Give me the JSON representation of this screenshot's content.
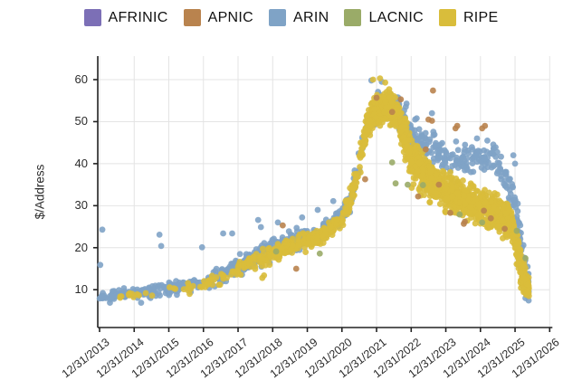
{
  "legend": {
    "items": [
      {
        "label": "AFRINIC",
        "color": "#7c6fb6"
      },
      {
        "label": "APNIC",
        "color": "#b9834e"
      },
      {
        "label": "ARIN",
        "color": "#7fa3c6"
      },
      {
        "label": "LACNIC",
        "color": "#9aab68"
      },
      {
        "label": "RIPE",
        "color": "#d9bd3b"
      }
    ]
  },
  "chart_data": {
    "type": "scatter",
    "title": "",
    "ylabel": "$/Address",
    "x_encoding": "t = years after 12/31/2013",
    "grid": true,
    "legend_position": "top-center",
    "x_axis": {
      "domain": [
        0,
        13
      ],
      "tick_labels": [
        "12/31/2013",
        "12/31/2014",
        "12/31/2015",
        "12/31/2016",
        "12/31/2017",
        "12/31/2018",
        "12/31/2019",
        "12/31/2020",
        "12/31/2021",
        "12/31/2022",
        "12/31/2023",
        "12/31/2024",
        "12/31/2025",
        "12/31/2026"
      ]
    },
    "y_axis": {
      "domain": [
        1,
        65.6
      ],
      "ticks": [
        10,
        20,
        30,
        40,
        50,
        60
      ]
    },
    "point_radius": 3.4,
    "series": [
      {
        "name": "AFRINIC",
        "color": "#7c6fb6",
        "points": []
      },
      {
        "name": "APNIC",
        "color": "#b9834e",
        "points": [
          [
            5.29,
            25.3
          ],
          [
            5.68,
            15.0
          ],
          [
            7.67,
            36.3
          ],
          [
            8.0,
            55.7
          ],
          [
            8.45,
            52.3
          ],
          [
            8.7,
            55.3
          ],
          [
            9.2,
            32.2
          ],
          [
            9.42,
            43.4
          ],
          [
            9.5,
            50.5
          ],
          [
            9.6,
            50.2
          ],
          [
            9.63,
            57.4
          ],
          [
            9.8,
            35.0
          ],
          [
            10.13,
            28.3
          ],
          [
            10.28,
            48.4
          ],
          [
            10.33,
            49.0
          ],
          [
            10.52,
            25.7
          ],
          [
            10.55,
            26.2
          ],
          [
            11.05,
            48.4
          ],
          [
            11.13,
            49.0
          ],
          [
            11.1,
            28.8
          ],
          [
            11.3,
            27.0
          ],
          [
            11.7,
            24.5
          ]
        ]
      },
      {
        "name": "ARIN",
        "color": "#7fa3c6",
        "trend": [
          [
            0,
            8.3
          ],
          [
            1,
            9.3
          ],
          [
            2,
            10.3
          ],
          [
            3,
            11.8
          ],
          [
            3.5,
            13.2
          ],
          [
            4,
            15.5
          ],
          [
            4.5,
            17.5
          ],
          [
            5,
            20.0
          ],
          [
            5.5,
            21.3
          ],
          [
            6,
            22.5
          ],
          [
            6.5,
            24.0
          ],
          [
            7,
            28.0
          ],
          [
            7.2,
            30.5
          ],
          [
            7.5,
            40
          ],
          [
            7.7,
            48
          ],
          [
            7.9,
            52
          ],
          [
            8.2,
            54
          ],
          [
            8.6,
            53
          ],
          [
            9,
            47
          ],
          [
            9.5,
            44
          ],
          [
            10,
            42
          ],
          [
            10.5,
            41
          ],
          [
            11,
            41
          ],
          [
            11.4,
            41.5
          ],
          [
            11.7,
            37
          ],
          [
            12,
            31
          ],
          [
            12.15,
            22
          ],
          [
            12.3,
            13
          ],
          [
            12.4,
            11
          ]
        ],
        "spread": [
          [
            0,
            1.3
          ],
          [
            1,
            1.5
          ],
          [
            2,
            1.7
          ],
          [
            3,
            2.2
          ],
          [
            4,
            2.8
          ],
          [
            5,
            3.2
          ],
          [
            6,
            2.8
          ],
          [
            7,
            3.0
          ],
          [
            7.5,
            4
          ],
          [
            8,
            4.5
          ],
          [
            8.6,
            5
          ],
          [
            9,
            5.5
          ],
          [
            10,
            4.5
          ],
          [
            11,
            4.5
          ],
          [
            11.7,
            4.5
          ],
          [
            12,
            5
          ],
          [
            12.2,
            6
          ],
          [
            12.4,
            4
          ]
        ],
        "segments": [
          [
            0,
            1,
            55
          ],
          [
            1,
            2,
            55
          ],
          [
            2,
            3,
            62
          ],
          [
            3,
            4,
            72
          ],
          [
            4,
            5,
            85
          ],
          [
            5,
            6,
            75
          ],
          [
            6,
            7,
            62
          ],
          [
            7,
            7.6,
            35
          ],
          [
            7.6,
            8.7,
            85
          ],
          [
            8.7,
            9.5,
            60
          ],
          [
            9.5,
            10.5,
            60
          ],
          [
            10.5,
            11.5,
            65
          ],
          [
            11.5,
            12.05,
            40
          ],
          [
            12.05,
            12.4,
            50
          ]
        ],
        "points": [
          [
            0.02,
            15.9
          ],
          [
            0.08,
            24.3
          ],
          [
            0.3,
            6.9
          ],
          [
            1.2,
            6.9
          ],
          [
            1.73,
            23.1
          ],
          [
            1.78,
            20.4
          ],
          [
            2.96,
            20.1
          ],
          [
            3.57,
            23.4
          ],
          [
            3.83,
            23.4
          ],
          [
            4.58,
            26.6
          ],
          [
            4.66,
            24.9
          ],
          [
            5.15,
            26.0
          ],
          [
            5.85,
            27.2
          ],
          [
            6.3,
            29.0
          ],
          [
            6.75,
            31.1
          ],
          [
            7.85,
            59.8
          ],
          [
            8.15,
            59.5
          ],
          [
            9.6,
            52.0
          ],
          [
            10.9,
            46.0
          ],
          [
            11.2,
            45.5
          ],
          [
            11.95,
            42.0
          ],
          [
            12.0,
            40.0
          ],
          [
            12.3,
            8.0
          ],
          [
            12.35,
            8.5
          ]
        ]
      },
      {
        "name": "LACNIC",
        "color": "#9aab68",
        "points": [
          [
            5.1,
            19.1
          ],
          [
            6.36,
            18.6
          ],
          [
            8.45,
            40.3
          ],
          [
            8.55,
            35.3
          ],
          [
            8.9,
            35.0
          ],
          [
            9.34,
            34.9
          ],
          [
            10.4,
            27.9
          ],
          [
            11.05,
            26.0
          ],
          [
            12.05,
            24.0
          ],
          [
            12.3,
            17.5
          ]
        ]
      },
      {
        "name": "RIPE",
        "color": "#d9bd3b",
        "trend": [
          [
            0.5,
            8.2
          ],
          [
            2,
            9.8
          ],
          [
            3,
            11.3
          ],
          [
            4,
            14.8
          ],
          [
            4.5,
            16.5
          ],
          [
            5,
            18.8
          ],
          [
            5.5,
            20.0
          ],
          [
            6,
            21.5
          ],
          [
            6.5,
            23.0
          ],
          [
            7,
            27.0
          ],
          [
            7.2,
            30
          ],
          [
            7.5,
            40
          ],
          [
            7.7,
            48
          ],
          [
            7.9,
            52.5
          ],
          [
            8.2,
            54
          ],
          [
            8.6,
            52
          ],
          [
            9,
            41
          ],
          [
            9.3,
            38
          ],
          [
            10,
            33.5
          ],
          [
            10.5,
            31.5
          ],
          [
            11,
            29.5
          ],
          [
            11.5,
            28
          ],
          [
            11.9,
            26
          ],
          [
            12.05,
            20
          ],
          [
            12.2,
            14
          ],
          [
            12.35,
            10.5
          ]
        ],
        "spread": [
          [
            0.5,
            1.2
          ],
          [
            3,
            1.8
          ],
          [
            4,
            2.2
          ],
          [
            5,
            2.8
          ],
          [
            6,
            2.6
          ],
          [
            7,
            2.8
          ],
          [
            7.5,
            4
          ],
          [
            8,
            4.2
          ],
          [
            8.6,
            4.8
          ],
          [
            9,
            6.5
          ],
          [
            10,
            5.5
          ],
          [
            11,
            5
          ],
          [
            11.9,
            4.5
          ],
          [
            12.1,
            5
          ],
          [
            12.35,
            3.5
          ]
        ],
        "segments": [
          [
            0.5,
            2,
            12
          ],
          [
            2,
            3,
            12
          ],
          [
            3,
            4,
            28
          ],
          [
            4,
            5,
            65
          ],
          [
            5,
            6,
            90
          ],
          [
            6,
            7,
            100
          ],
          [
            7,
            7.6,
            60
          ],
          [
            7.6,
            8.7,
            310
          ],
          [
            8.7,
            9.5,
            220
          ],
          [
            9.5,
            10.5,
            260
          ],
          [
            10.5,
            11.5,
            260
          ],
          [
            11.5,
            12.05,
            150
          ],
          [
            12.05,
            12.4,
            130
          ]
        ],
        "points": [
          [
            0.6,
            8.4
          ],
          [
            2.6,
            9.0
          ],
          [
            4.7,
            12.8
          ],
          [
            4.75,
            13.4
          ],
          [
            7.9,
            60.0
          ],
          [
            8.1,
            60.3
          ],
          [
            8.25,
            59.3
          ],
          [
            12.32,
            8.8
          ],
          [
            12.36,
            9.5
          ]
        ]
      }
    ]
  }
}
